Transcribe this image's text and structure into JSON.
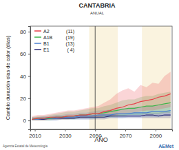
{
  "chart_data": {
    "type": "line",
    "title": "CANTABRIA",
    "subtitle": "ANUAL",
    "x_label": "AÑO",
    "y_label": "Cambio duración olas de calor (días)",
    "source": "Agencia Estatal de Meteorología",
    "logo_text": "AEMet",
    "xlim": [
      2007,
      2101
    ],
    "xticks": [
      2010,
      2030,
      2050,
      2070,
      2090
    ],
    "ylim": [
      -8,
      85
    ],
    "yticks": [
      0,
      20,
      40,
      60,
      80
    ],
    "grid": false,
    "legend": "top-left",
    "reference_x": 2050,
    "periods": [
      [
        2046,
        2065
      ],
      [
        2081,
        2100
      ]
    ],
    "x": [
      2008,
      2012,
      2016,
      2020,
      2024,
      2028,
      2032,
      2036,
      2040,
      2044,
      2048,
      2052,
      2056,
      2060,
      2064,
      2068,
      2072,
      2076,
      2080,
      2084,
      2088,
      2092,
      2096,
      2100
    ],
    "series": [
      {
        "name": "A2",
        "color": "#e8404a",
        "count": {
          "value": 11,
          "label": "(11)"
        },
        "values": [
          1,
          2,
          2,
          3,
          3,
          3,
          4,
          4,
          5,
          5,
          6,
          6,
          8,
          9,
          11,
          12,
          14,
          15,
          17,
          18,
          19,
          21,
          22,
          24
        ],
        "lower": [
          0,
          0,
          0,
          1,
          1,
          1,
          1,
          2,
          2,
          2,
          3,
          3,
          4,
          4,
          5,
          6,
          7,
          7,
          8,
          9,
          9,
          10,
          11,
          12
        ],
        "upper": [
          4,
          5,
          5,
          6,
          7,
          8,
          9,
          9,
          10,
          11,
          12,
          13,
          16,
          19,
          24,
          27,
          29,
          26,
          32,
          30,
          34,
          33,
          40,
          44
        ]
      },
      {
        "name": "A1B",
        "color": "#3cb44b",
        "count": {
          "value": 19,
          "label": "(19)"
        },
        "values": [
          1,
          2,
          2,
          2,
          3,
          3,
          4,
          4,
          5,
          5,
          6,
          6,
          7,
          8,
          9,
          10,
          11,
          11,
          12,
          13,
          13,
          14,
          15,
          16
        ],
        "lower": [
          0,
          0,
          0,
          0,
          1,
          1,
          1,
          1,
          2,
          2,
          2,
          2,
          3,
          3,
          4,
          4,
          5,
          5,
          5,
          6,
          6,
          6,
          7,
          7
        ],
        "upper": [
          3,
          4,
          4,
          5,
          6,
          7,
          8,
          8,
          9,
          10,
          11,
          11,
          13,
          14,
          16,
          18,
          19,
          19,
          21,
          22,
          22,
          24,
          25,
          26
        ]
      },
      {
        "name": "B1",
        "color": "#4a7fd0",
        "count": {
          "value": 13,
          "label": "(13)"
        },
        "values": [
          1,
          1,
          2,
          2,
          2,
          3,
          3,
          3,
          4,
          4,
          4,
          5,
          5,
          5,
          6,
          6,
          6,
          7,
          7,
          7,
          8,
          8,
          8,
          9
        ],
        "lower": [
          0,
          0,
          0,
          0,
          0,
          1,
          1,
          1,
          1,
          1,
          1,
          2,
          2,
          2,
          2,
          2,
          3,
          3,
          3,
          3,
          3,
          3,
          4,
          4
        ],
        "upper": [
          3,
          3,
          4,
          4,
          5,
          5,
          6,
          6,
          7,
          7,
          8,
          9,
          9,
          10,
          10,
          11,
          11,
          12,
          12,
          13,
          13,
          14,
          14,
          15
        ]
      },
      {
        "name": "E1",
        "color": "#2e2e7a",
        "count": {
          "value": 4,
          "label": "( 4)"
        },
        "values": [
          1,
          1,
          1,
          2,
          2,
          2,
          2,
          2,
          3,
          3,
          3,
          3,
          3,
          4,
          4,
          4,
          4,
          4,
          4,
          5,
          5,
          4,
          5,
          5
        ],
        "lower": [
          0,
          0,
          0,
          0,
          0,
          1,
          1,
          1,
          1,
          1,
          1,
          1,
          1,
          2,
          2,
          2,
          2,
          2,
          2,
          2,
          2,
          2,
          2,
          2
        ],
        "upper": [
          2,
          3,
          3,
          3,
          4,
          4,
          4,
          4,
          5,
          5,
          5,
          5,
          6,
          6,
          6,
          6,
          7,
          7,
          7,
          7,
          7,
          7,
          8,
          8
        ]
      }
    ]
  }
}
